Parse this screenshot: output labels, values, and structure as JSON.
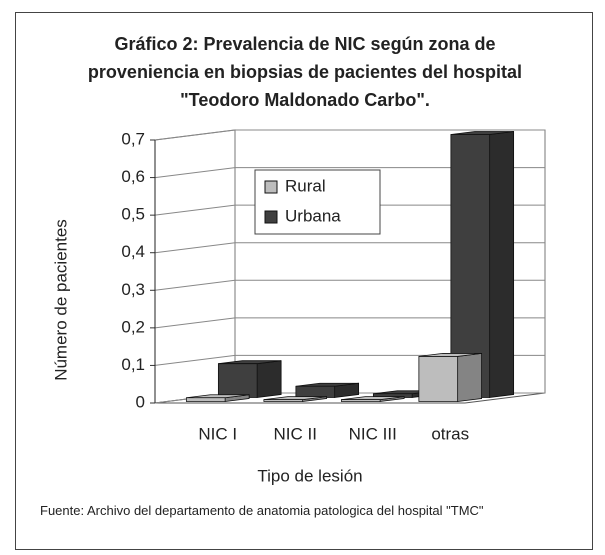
{
  "chart_data": {
    "type": "bar3d",
    "title": "Gráfico 2: Prevalencia de NIC según zona de proveniencia en biopsias de pacientes del hospital \"Teodoro Maldonado Carbo\".",
    "xlabel": "Tipo de lesión",
    "ylabel": "Número de pacientes",
    "source": "Fuente: Archivo del departamento de anatomia patologica del hospital \"TMC\"",
    "categories": [
      "NIC I",
      "NIC II",
      "NIC III",
      "otras"
    ],
    "series": [
      {
        "name": "Rural",
        "color": "#bdbdbd",
        "values": [
          0.01,
          0.005,
          0.005,
          0.12
        ]
      },
      {
        "name": "Urbana",
        "color": "#3f3f3f",
        "values": [
          0.09,
          0.03,
          0.01,
          0.7
        ]
      }
    ],
    "ylim": [
      0,
      0.7
    ],
    "yticks": [
      0,
      {
        "value": 0.1,
        "label": "0,1"
      },
      {
        "value": 0.2,
        "label": "0,2"
      },
      {
        "value": 0.3,
        "label": "0,3"
      },
      {
        "value": 0.4,
        "label": "0,4"
      },
      {
        "value": 0.5,
        "label": "0,5"
      },
      {
        "value": 0.6,
        "label": "0,6"
      },
      {
        "value": 0.7,
        "label": "0,7"
      }
    ],
    "grid": true,
    "legend": "upper left"
  }
}
